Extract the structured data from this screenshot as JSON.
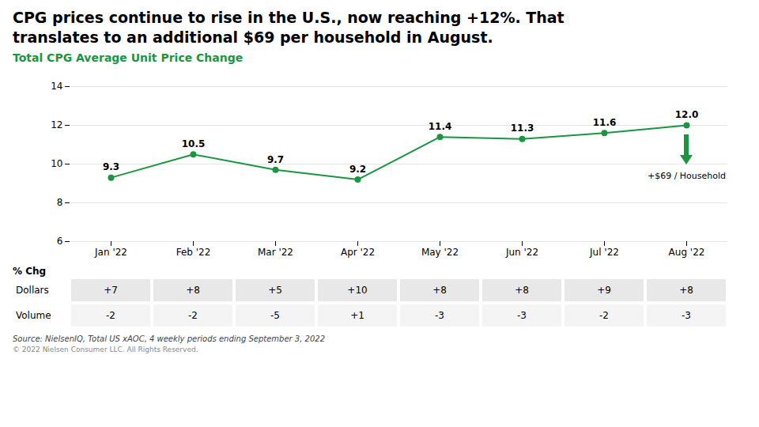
{
  "chart_data": {
    "type": "line",
    "title": "CPG prices continue to rise in the U.S., now reaching +12%. That\ntranslates to an additional $69 per household in August.",
    "subtitle": "Total CPG Average Unit Price Change",
    "categories": [
      "Jan '22",
      "Feb '22",
      "Mar '22",
      "Apr '22",
      "May '22",
      "Jun '22",
      "Jul '22",
      "Aug '22"
    ],
    "values": [
      9.3,
      10.5,
      9.7,
      9.2,
      11.4,
      11.3,
      11.6,
      12.0
    ],
    "value_labels": [
      "9.3",
      "10.5",
      "9.7",
      "9.2",
      "11.4",
      "11.3",
      "11.6",
      "12.0"
    ],
    "color": "#1a9641",
    "ylim": [
      6,
      14
    ],
    "yticks": [
      6,
      8,
      10,
      12,
      14
    ],
    "grid": true,
    "data_labels": true,
    "annotation": "+$69 / Household",
    "table": {
      "title": "% Chg",
      "rows": [
        {
          "name": "Dollars",
          "values": [
            7,
            8,
            5,
            10,
            8,
            8,
            9,
            8
          ],
          "value_labels": [
            "+7",
            "+8",
            "+5",
            "+10",
            "+8",
            "+8",
            "+9",
            "+8"
          ],
          "color": "#e8e8e8"
        },
        {
          "name": "Volume",
          "values": [
            -2,
            -2,
            -5,
            1,
            -3,
            -3,
            -2,
            -3
          ],
          "value_labels": [
            "-2",
            "-2",
            "-5",
            "+1",
            "-3",
            "-3",
            "-2",
            "-3"
          ],
          "color": "#f4f4f4"
        }
      ]
    },
    "source": "Source: NielsenIQ, Total US xAOC, 4 weekly periods ending September 3, 2022",
    "copyright": "© 2022 Nielsen Consumer LLC. All Rights Reserved."
  }
}
